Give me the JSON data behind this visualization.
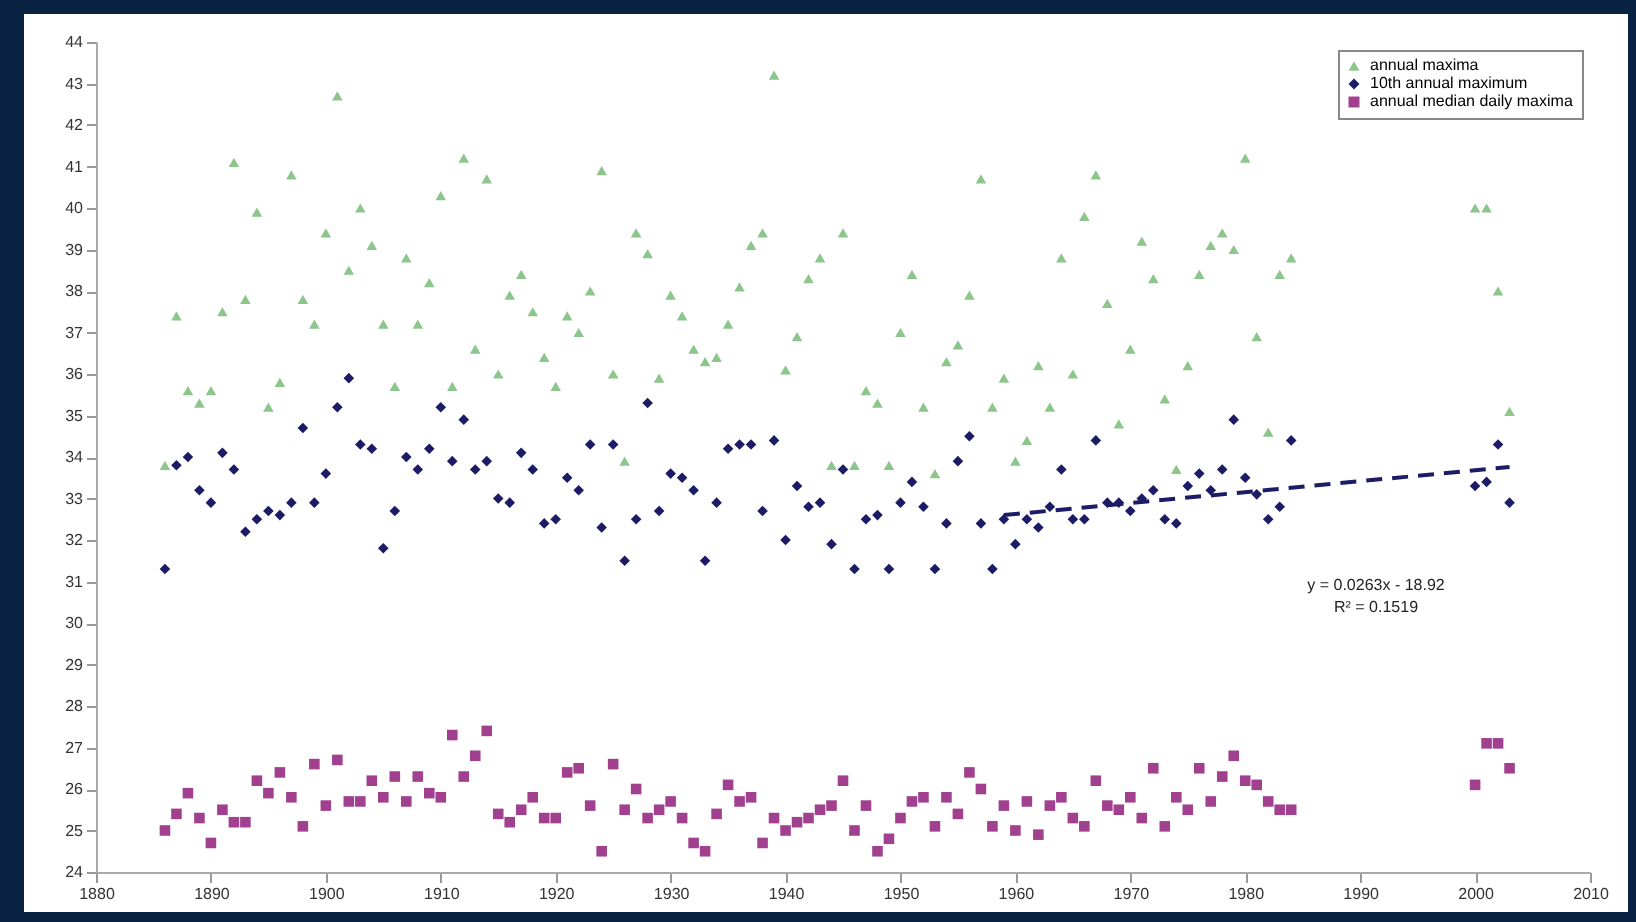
{
  "chart_data": {
    "type": "scatter",
    "x": [
      1886,
      1887,
      1888,
      1889,
      1890,
      1891,
      1892,
      1893,
      1894,
      1895,
      1896,
      1897,
      1898,
      1899,
      1900,
      1901,
      1902,
      1903,
      1904,
      1905,
      1906,
      1907,
      1908,
      1909,
      1910,
      1911,
      1912,
      1913,
      1914,
      1915,
      1916,
      1917,
      1918,
      1919,
      1920,
      1921,
      1922,
      1923,
      1924,
      1925,
      1926,
      1927,
      1928,
      1929,
      1930,
      1931,
      1932,
      1933,
      1934,
      1935,
      1936,
      1937,
      1938,
      1939,
      1940,
      1941,
      1942,
      1943,
      1944,
      1945,
      1946,
      1947,
      1948,
      1949,
      1950,
      1951,
      1952,
      1953,
      1954,
      1955,
      1956,
      1957,
      1958,
      1959,
      1960,
      1961,
      1962,
      1963,
      1964,
      1965,
      1966,
      1967,
      1968,
      1969,
      1970,
      1971,
      1972,
      1973,
      1974,
      1975,
      1976,
      1977,
      1978,
      1979,
      1980,
      1981,
      1982,
      1983,
      1984,
      2000,
      2001,
      2002,
      2003
    ],
    "series": [
      {
        "name": "annual maxima",
        "color": "#8cc68c",
        "marker": "triangle",
        "values": [
          33.8,
          37.4,
          35.6,
          35.3,
          35.6,
          37.5,
          41.1,
          37.8,
          39.9,
          35.2,
          35.8,
          40.8,
          37.8,
          37.2,
          39.4,
          42.7,
          38.5,
          40.0,
          39.1,
          37.2,
          35.7,
          38.8,
          37.2,
          38.2,
          40.3,
          35.7,
          41.2,
          36.6,
          40.7,
          36.0,
          37.9,
          38.4,
          37.5,
          36.4,
          35.7,
          37.4,
          37.0,
          38.0,
          40.9,
          36.0,
          33.9,
          39.4,
          38.9,
          35.9,
          37.9,
          37.4,
          36.6,
          36.3,
          36.4,
          37.2,
          38.1,
          39.1,
          39.4,
          43.2,
          36.1,
          36.9,
          38.3,
          38.8,
          33.8,
          39.4,
          33.8,
          35.6,
          35.3,
          33.8,
          37.0,
          38.4,
          35.2,
          33.6,
          36.3,
          36.7,
          37.9,
          40.7,
          35.2,
          35.9,
          33.9,
          34.4,
          36.2,
          35.2,
          38.8,
          36.0,
          39.8,
          40.8,
          37.7,
          34.8,
          36.6,
          39.2,
          38.3,
          35.4,
          33.7,
          36.2,
          38.4,
          39.1,
          39.4,
          39.0,
          41.2,
          36.9,
          34.6,
          38.4,
          38.8,
          40.0,
          40.0,
          38.0,
          35.1
        ]
      },
      {
        "name": "10th annual maximum",
        "color": "#1c1c66",
        "marker": "diamond",
        "values": [
          31.3,
          33.8,
          34.0,
          33.2,
          32.9,
          34.1,
          33.7,
          32.2,
          32.5,
          32.7,
          32.6,
          32.9,
          34.7,
          32.9,
          33.6,
          35.2,
          35.9,
          34.3,
          34.2,
          31.8,
          32.7,
          34.0,
          33.7,
          34.2,
          35.2,
          33.9,
          34.9,
          33.7,
          33.9,
          33.0,
          32.9,
          34.1,
          33.7,
          32.4,
          32.5,
          33.5,
          33.2,
          34.3,
          32.3,
          34.3,
          31.5,
          32.5,
          35.3,
          32.7,
          33.6,
          33.5,
          33.2,
          31.5,
          32.9,
          34.2,
          34.3,
          34.3,
          32.7,
          34.4,
          32.0,
          33.3,
          32.8,
          32.9,
          31.9,
          33.7,
          31.3,
          32.5,
          32.6,
          31.3,
          32.9,
          33.4,
          32.8,
          31.3,
          32.4,
          33.9,
          34.5,
          32.4,
          31.3,
          32.5,
          31.9,
          32.5,
          32.3,
          32.8,
          33.7,
          32.5,
          32.5,
          34.4,
          32.9,
          32.9,
          32.7,
          33.0,
          33.2,
          32.5,
          32.4,
          33.3,
          33.6,
          33.2,
          33.7,
          34.9,
          33.5,
          33.1,
          32.5,
          32.8,
          34.4,
          33.3,
          33.4,
          34.3,
          32.9
        ]
      },
      {
        "name": "annual median daily maxima",
        "color": "#a0408f",
        "marker": "square",
        "values": [
          25.0,
          25.4,
          25.9,
          25.3,
          24.7,
          25.5,
          25.2,
          25.2,
          26.2,
          25.9,
          26.4,
          25.8,
          25.1,
          26.6,
          25.6,
          26.7,
          25.7,
          25.7,
          26.2,
          25.8,
          26.3,
          25.7,
          26.3,
          25.9,
          25.8,
          27.3,
          26.3,
          26.8,
          27.4,
          25.4,
          25.2,
          25.5,
          25.8,
          25.3,
          25.3,
          26.4,
          26.5,
          25.6,
          24.5,
          26.6,
          25.5,
          26.0,
          25.3,
          25.5,
          25.7,
          25.3,
          24.7,
          24.5,
          25.4,
          26.1,
          25.7,
          25.8,
          24.7,
          25.3,
          25.0,
          25.2,
          25.3,
          25.5,
          25.6,
          26.2,
          25.0,
          25.6,
          24.5,
          24.8,
          25.3,
          25.7,
          25.8,
          25.1,
          25.8,
          25.4,
          26.4,
          26.0,
          25.1,
          25.6,
          25.0,
          25.7,
          24.9,
          25.6,
          25.8,
          25.3,
          25.1,
          26.2,
          25.6,
          25.5,
          25.8,
          25.3,
          26.5,
          25.1,
          25.8,
          25.5,
          26.5,
          25.7,
          26.3,
          26.8,
          26.2,
          26.1,
          25.7,
          25.5,
          25.5,
          26.1,
          27.1,
          27.1,
          26.5
        ]
      },
      {
        "type": "line",
        "color": "#1c1c66",
        "line_style": "dashed",
        "x": [
          1959,
          2003
        ],
        "values": [
          32.6,
          33.76
        ]
      }
    ],
    "xlim": [
      1880,
      2010
    ],
    "xticks": [
      1880,
      1890,
      1900,
      1910,
      1920,
      1930,
      1940,
      1950,
      1960,
      1970,
      1980,
      1990,
      2000,
      2010
    ],
    "ylim": [
      24,
      44
    ],
    "yticks": [
      24,
      25,
      26,
      27,
      28,
      29,
      30,
      31,
      32,
      33,
      34,
      35,
      36,
      37,
      38,
      39,
      40,
      41,
      42,
      43,
      44
    ],
    "grid": false,
    "legend": "top right",
    "annotations": [
      "y = 0.0263x - 18.92",
      "R² = 0.1519"
    ]
  }
}
